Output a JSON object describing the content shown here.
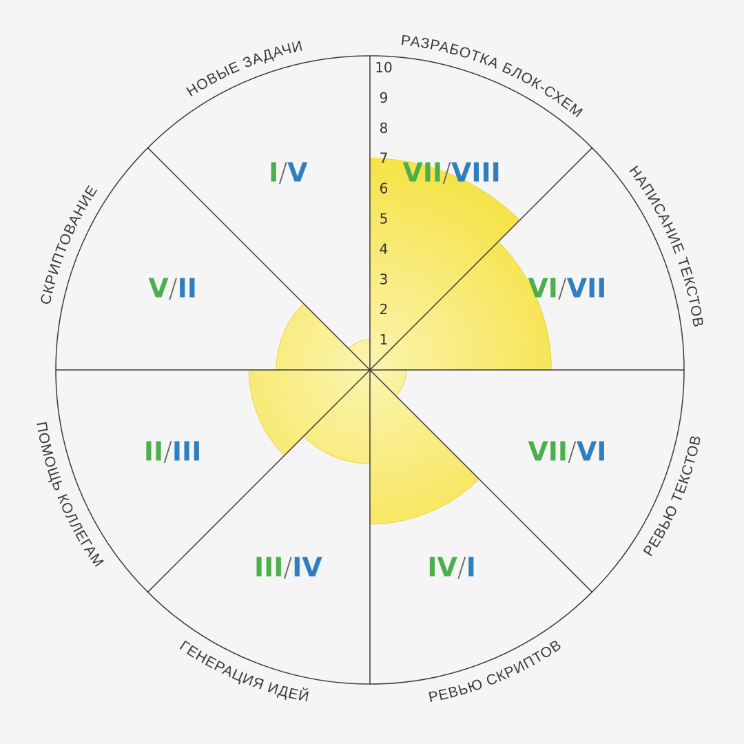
{
  "chart_data": {
    "type": "polar_area",
    "max": 10,
    "ticks": [
      "1",
      "2",
      "3",
      "4",
      "5",
      "6",
      "7",
      "8",
      "9",
      "10"
    ],
    "segments": [
      {
        "label": "РАЗРАБОТКА БЛОК-СХЕМ",
        "value": 7,
        "rank_a": "VII",
        "rank_b": "VIII"
      },
      {
        "label": "НАПИСАНИЕ ТЕКСТОВ",
        "value": 6,
        "rank_a": "VI",
        "rank_b": "VII"
      },
      {
        "label": "РЕВЬЮ ТЕКСТОВ",
        "value": 1.2,
        "rank_a": "VII",
        "rank_b": "VI"
      },
      {
        "label": "РЕВЬЮ СКРИПТОВ",
        "value": 5.1,
        "rank_a": "IV",
        "rank_b": "I"
      },
      {
        "label": "ГЕНЕРАЦИЯ ИДЕЙ",
        "value": 3.1,
        "rank_a": "III",
        "rank_b": "IV"
      },
      {
        "label": "ПОМОЩЬ КОЛЛЕГАМ",
        "value": 4,
        "rank_a": "II",
        "rank_b": "III"
      },
      {
        "label": "СКРИПТОВАНИЕ",
        "value": 3.1,
        "rank_a": "V",
        "rank_b": "II"
      },
      {
        "label": "НОВЫЕ ЗАДАЧИ",
        "value": 1,
        "rank_a": "I",
        "rank_b": "V"
      }
    ],
    "colors": {
      "fill_light": "#fbf4b0",
      "fill_dark": "#f6e244",
      "rank_a": "#4cae4c",
      "rank_b": "#2f7fc0",
      "lines": "#3a3a3a"
    }
  }
}
